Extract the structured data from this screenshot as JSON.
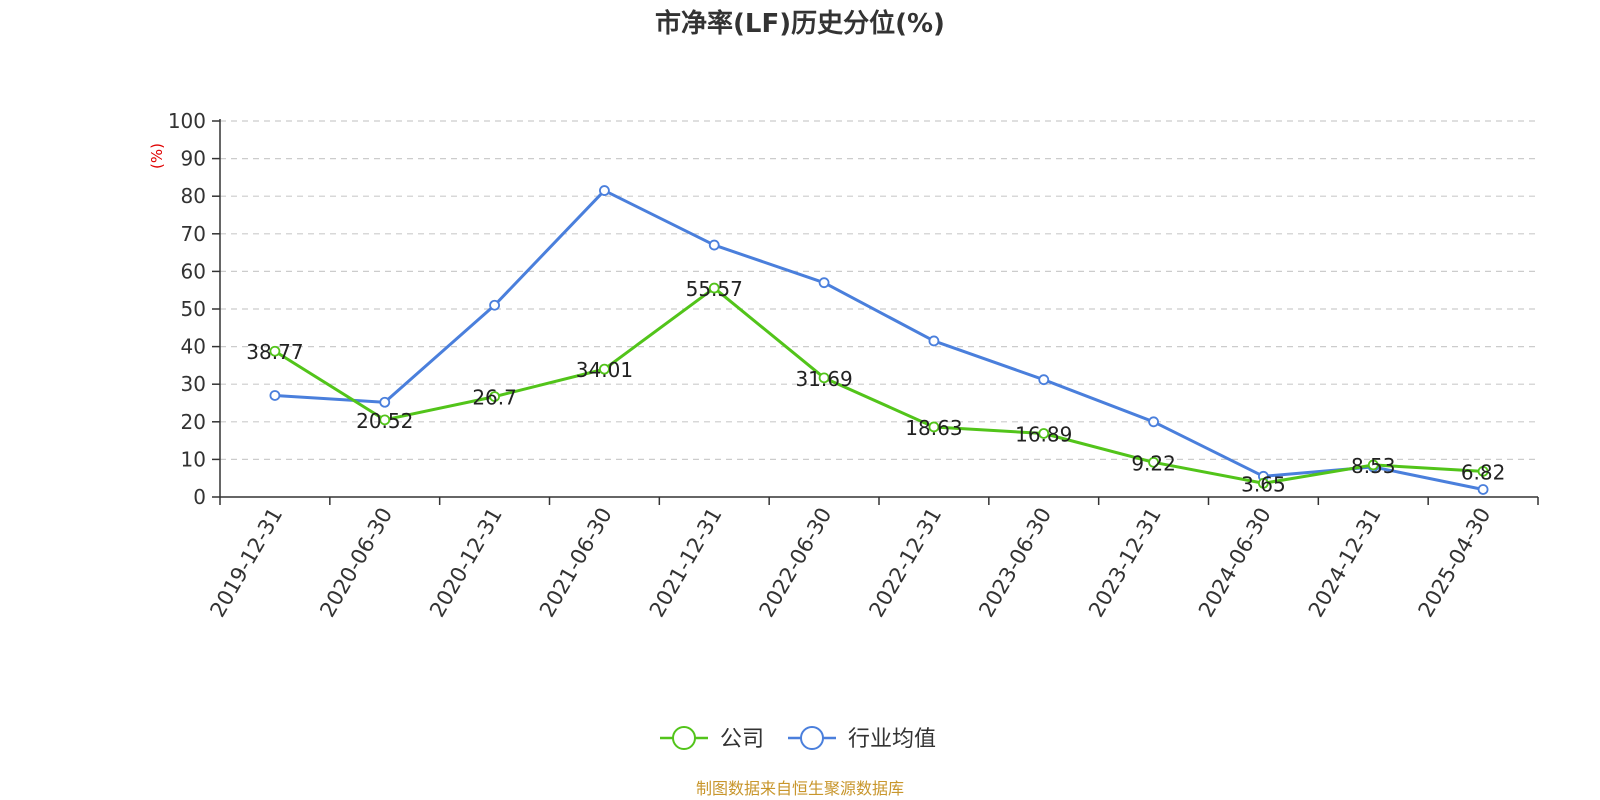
{
  "chart_data": {
    "type": "line",
    "title": "市净率(LF)历史分位(%)",
    "ylabel": "(%)",
    "ylim": [
      0,
      100
    ],
    "yticks": [
      0,
      10,
      20,
      30,
      40,
      50,
      60,
      70,
      80,
      90,
      100
    ],
    "categories": [
      "2019-12-31",
      "2020-06-30",
      "2020-12-31",
      "2021-06-30",
      "2021-12-31",
      "2022-06-30",
      "2022-12-31",
      "2023-06-30",
      "2023-12-31",
      "2024-06-30",
      "2024-12-31",
      "2025-04-30"
    ],
    "grid": true,
    "legend_position": "bottom",
    "series": [
      {
        "name": "公司",
        "color": "#52c41a",
        "show_labels": true,
        "values": [
          38.77,
          20.52,
          26.7,
          34.01,
          55.57,
          31.69,
          18.63,
          16.89,
          9.22,
          3.65,
          8.53,
          6.82
        ]
      },
      {
        "name": "行业均值",
        "color": "#4a7fdc",
        "show_labels": false,
        "values": [
          27.0,
          25.2,
          51.0,
          81.5,
          67.0,
          57.0,
          41.5,
          31.2,
          20.0,
          5.5,
          8.0,
          2.0
        ]
      }
    ],
    "source": "制图数据来自恒生聚源数据库",
    "source_color": "#c8962c",
    "ylabel_color": "#e00000"
  }
}
